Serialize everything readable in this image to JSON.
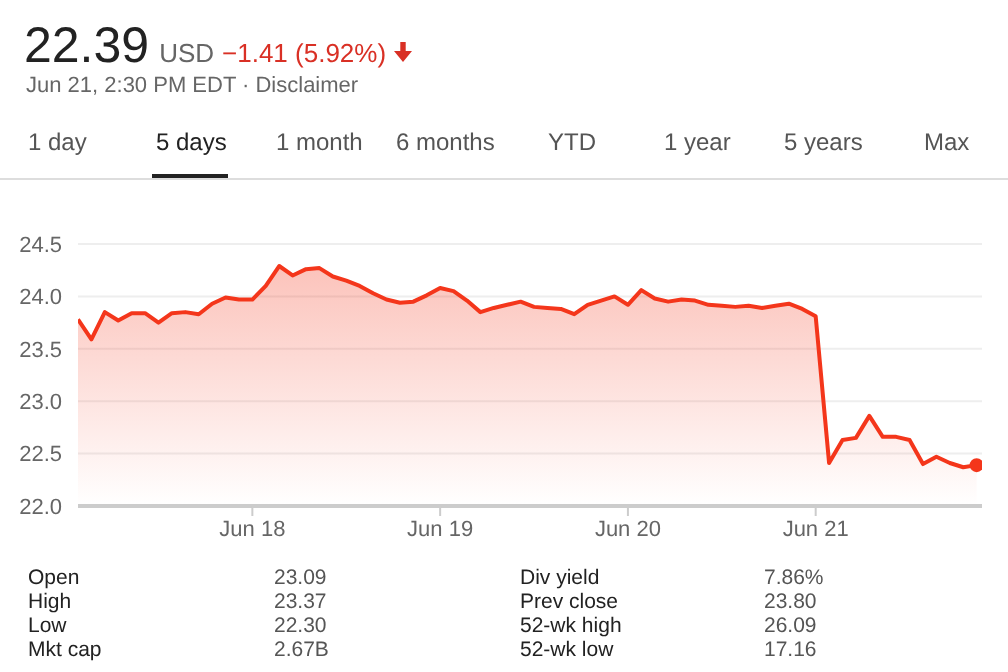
{
  "chart_data": {
    "type": "area",
    "title": "22.39",
    "subtitle": "USD",
    "annotations": [
      "−1.41 (5.92%)",
      "Jun 21, 2:30 PM EDT · Disclaimer",
      "1 day",
      "5 days",
      "1 month",
      "6 months",
      "YTD",
      "1 year",
      "5 years",
      "Max",
      "Open",
      "23.09",
      "Div yield",
      "7.86%",
      "High",
      "23.37",
      "Prev close",
      "23.80",
      "Low",
      "22.30",
      "52-wk high",
      "26.09",
      "Mkt cap",
      "2.67B",
      "52-wk low",
      "17.16"
    ],
    "categories": [
      null,
      null,
      null,
      null,
      null,
      null,
      null,
      null,
      null,
      null,
      null,
      null,
      null,
      "Jun 18",
      null,
      null,
      null,
      null,
      null,
      null,
      null,
      null,
      null,
      null,
      null,
      null,
      null,
      "Jun 19",
      null,
      null,
      null,
      null,
      null,
      null,
      null,
      null,
      null,
      null,
      null,
      null,
      null,
      "Jun 20",
      null,
      null,
      null,
      null,
      null,
      null,
      null,
      null,
      null,
      null,
      null,
      null,
      null,
      "Jun 21",
      null,
      null,
      null,
      null,
      null,
      null,
      null,
      null,
      null,
      null,
      null,
      null
    ],
    "series": [
      {
        "color": "#f4361b",
        "values": [
          23.78,
          23.59,
          23.85,
          23.77,
          23.84,
          23.84,
          23.75,
          23.84,
          23.85,
          23.83,
          23.93,
          23.99,
          23.97,
          23.97,
          24.1,
          24.29,
          24.2,
          24.26,
          24.27,
          24.19,
          24.15,
          24.1,
          24.03,
          23.97,
          23.94,
          23.95,
          24.01,
          24.08,
          24.05,
          23.96,
          23.85,
          23.89,
          23.92,
          23.95,
          23.9,
          23.89,
          23.88,
          23.83,
          23.92,
          23.96,
          24.0,
          23.92,
          24.06,
          23.98,
          23.95,
          23.97,
          23.96,
          23.92,
          23.91,
          23.9,
          23.91,
          23.89,
          23.91,
          23.93,
          23.88,
          23.81,
          22.41,
          22.63,
          22.65,
          22.86,
          22.66,
          22.66,
          22.63,
          22.4,
          22.47,
          22.41,
          22.37,
          22.39
        ]
      }
    ],
    "ylim": [
      22,
      24.5
    ],
    "yticks": [
      {
        "value": 22,
        "label": "22.0"
      },
      {
        "value": 22.5,
        "label": "22.5"
      },
      {
        "value": 23,
        "label": "23.0"
      },
      {
        "value": 23.5,
        "label": "23.5"
      },
      {
        "value": 24,
        "label": "24.0"
      },
      {
        "value": 24.5,
        "label": "24.5"
      }
    ],
    "grid": "y"
  }
}
